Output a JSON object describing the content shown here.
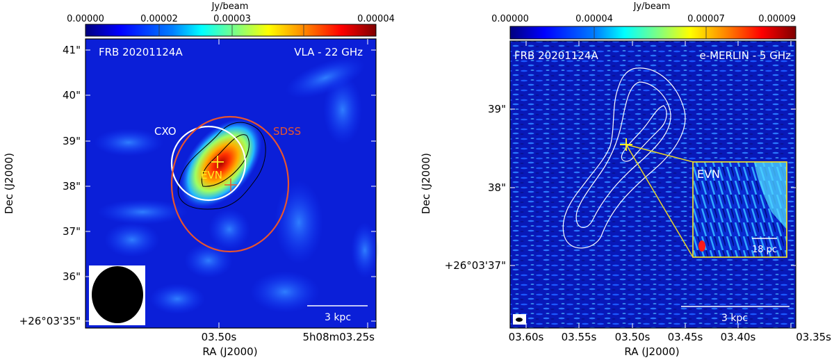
{
  "colorbar_unit": "Jy/beam",
  "colormap_stops": [
    "#00007f",
    "#0000ff",
    "#0080ff",
    "#00ffff",
    "#80ff80",
    "#ffff00",
    "#ff8000",
    "#ff0000",
    "#7f0000"
  ],
  "left": {
    "cbar_ticks": [
      "0.00000",
      "0.00002",
      "0.00003",
      "0.00004"
    ],
    "label_left": "FRB 20201124A",
    "label_right": "VLA - 22 GHz",
    "cxo_label": "CXO",
    "sdss_label": "SDSS",
    "evn_label": "EVN",
    "scalebar": "3 kpc",
    "dec_ticks": [
      "41\"",
      "40\"",
      "39\"",
      "38\"",
      "37\"",
      "36\"",
      "+26°03'35\""
    ],
    "ra_ticks": [
      "03.50s",
      "5h08m03.25s"
    ],
    "xlabel": "RA (J2000)",
    "ylabel": "Dec (J2000)",
    "colors": {
      "cxo": "#ffffff",
      "sdss": "#e8552e",
      "marker": "#ffee22"
    }
  },
  "right": {
    "cbar_ticks": [
      "0.00000",
      "0.00004",
      "0.00007",
      "0.00009"
    ],
    "label_left": "FRB 20201124A",
    "label_right": "e-MERLIN - 5 GHz",
    "inset_label": "EVN",
    "inset_scalebar": "18 pc",
    "scalebar": "3 kpc",
    "dec_ticks": [
      "39\"",
      "38\"",
      "+26°03'37\""
    ],
    "ra_ticks": [
      "03.60s",
      "03.55s",
      "03.50s",
      "03.45s",
      "03.40s",
      "03.35s"
    ],
    "xlabel": "RA (J2000)",
    "ylabel": "Dec (J2000)",
    "colors": {
      "inset_border": "#e8d82a",
      "marker": "#ffee22"
    }
  }
}
